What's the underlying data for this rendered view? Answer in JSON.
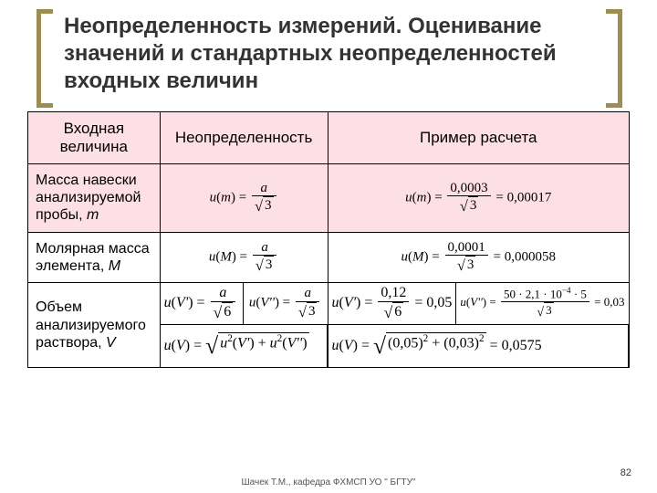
{
  "title": "Неопределенность измерений. Оценивание значений и стандартных неопределенностей входных величин",
  "columns": [
    "Входная величина",
    "Неопределенность",
    "Пример расчета"
  ],
  "rows": [
    {
      "label_html": " Масса навески анализируемой пробы, <span class='ital'>m</span>",
      "uncert_html": "<span class='ital'>u</span>(<span class='ital'>m</span>) = <span class='frac'><span class='num'><span class='ital'>a</span></span><span class='den'><span class='sqrt'><span class='rad'>3</span></span></span></span>",
      "example_html": "<span class='ital'>u</span>(<span class='ital'>m</span>) = <span class='frac'><span class='num'>0,0003</span><span class='den'><span class='sqrt'><span class='rad'>3</span></span></span></span> = 0,00017",
      "bg": "pink"
    },
    {
      "label_html": "Молярная масса элемента, <span class='ital'>M</span>",
      "uncert_html": "<span class='ital'>u</span>(<span class='ital'>M</span>) = <span class='frac'><span class='num'><span class='ital'>a</span></span><span class='den'><span class='sqrt'><span class='rad'>3</span></span></span></span>",
      "example_html": "<span class='ital'>u</span>(<span class='ital'>M</span>) = <span class='frac'><span class='num'>0,0001</span><span class='den'><span class='sqrt'><span class='rad'>3</span></span></span></span> = 0,000058",
      "bg": "white"
    }
  ],
  "volume_row": {
    "label_html": "Объем анализируемого раствора, <span class='ital'>V</span>",
    "u1_a": "<span class='ital'>u</span>(<span class='ital'>V'</span>) = <span class='frac'><span class='num'><span class='ital'>a</span></span><span class='den'><span class='sqrt'><span class='rad'>6</span></span></span></span>",
    "u1_b": "<span class='ital'>u</span>(<span class='ital'>V''</span>) = <span class='frac'><span class='num'><span class='ital'>a</span></span><span class='den'><span class='sqrt'><span class='rad'>3</span></span></span></span>",
    "u1_c": "<span class='ital'>u</span>(<span class='ital'>V</span>) = <span class='sqrt bigsqrt'><span class='rad'><span class='ital'>u</span><sup>2</sup>(<span class='ital'>V'</span>) + <span class='ital'>u</span><sup>2</sup>(<span class='ital'>V''</span>)</span></span>",
    "ex_a": "<span class='ital'>u</span>(<span class='ital'>V'</span>) = <span class='frac'><span class='num'>0,12</span><span class='den'><span class='sqrt'><span class='rad'>6</span></span></span></span> = 0,05",
    "ex_b": "<span class='ital'>u</span>(<span class='ital'>V''</span>) = <span class='frac'><span class='num'>50 · 2,1 · 10<sup>−4</sup> · 5</span><span class='den'><span class='sqrt'><span class='rad'>3</span></span></span></span> = 0,03",
    "ex_c": "<span class='ital'>u</span>(<span class='ital'>V</span>) = <span class='sqrt bigsqrt'><span class='rad'>(0,05)<sup>2</sup> + (0,03)<sup>2</sup></span></span> = 0,0575"
  },
  "footer": "Шачек Т.М., кафедра ФХМСП УО \" БГТУ\"",
  "pagenum": "82",
  "colors": {
    "accent": "#9c8e52",
    "pink": "#fce0e6"
  }
}
